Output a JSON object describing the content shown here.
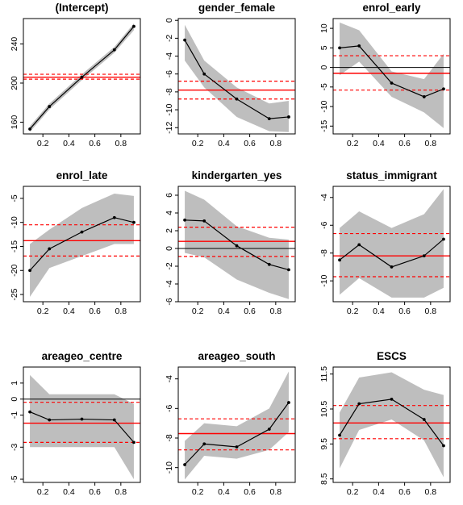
{
  "colors": {
    "band": "#bebebe",
    "mean_line": "#ff0000",
    "ci_line": "#ff0000",
    "zero_line": "#000000",
    "quantile_line": "#000000",
    "axis": "#000000"
  },
  "chart_data": [
    {
      "type": "line",
      "title": "(Intercept)",
      "x": [
        0.1,
        0.25,
        0.5,
        0.75,
        0.9
      ],
      "series": [
        {
          "values": [
            153,
            176,
            206,
            234,
            258
          ]
        }
      ],
      "band_lower": [
        150,
        173,
        203,
        231,
        254
      ],
      "band_upper": [
        156,
        179,
        209,
        237,
        261
      ],
      "mean": 206,
      "ci_lower": 204,
      "ci_upper": 209,
      "show_zero_line": false,
      "xlim": [
        0.05,
        0.95
      ],
      "ylim": [
        148,
        266
      ],
      "x_ticks": [
        0.2,
        0.4,
        0.6,
        0.8
      ],
      "x_tick_labels": [
        "0.2",
        "0.4",
        "0.6",
        "0.8"
      ],
      "y_ticks": [
        160,
        200,
        240
      ],
      "y_tick_labels": [
        "160",
        "200",
        "240"
      ]
    },
    {
      "type": "line",
      "title": "gender_female",
      "x": [
        0.1,
        0.25,
        0.5,
        0.75,
        0.9
      ],
      "series": [
        {
          "values": [
            -2.2,
            -6.0,
            -8.8,
            -11.0,
            -10.8
          ]
        }
      ],
      "band_lower": [
        -4.5,
        -7.5,
        -10.8,
        -12.4,
        -12.5
      ],
      "band_upper": [
        -0.5,
        -4.5,
        -7.5,
        -9.3,
        -9.0
      ],
      "mean": -7.8,
      "ci_lower": -8.8,
      "ci_upper": -6.8,
      "show_zero_line": false,
      "xlim": [
        0.05,
        0.95
      ],
      "ylim": [
        -12.7,
        0.2
      ],
      "x_ticks": [
        0.2,
        0.4,
        0.6,
        0.8
      ],
      "x_tick_labels": [
        "0.2",
        "0.4",
        "0.6",
        "0.8"
      ],
      "y_ticks": [
        -12,
        -10,
        -8,
        -6,
        -4,
        -2,
        0
      ],
      "y_tick_labels": [
        "-12",
        "-10",
        "-8",
        "-6",
        "-4",
        "-2",
        "0"
      ]
    },
    {
      "type": "line",
      "title": "enrol_early",
      "x": [
        0.1,
        0.25,
        0.5,
        0.75,
        0.9
      ],
      "series": [
        {
          "values": [
            5.0,
            5.5,
            -4.0,
            -7.5,
            -5.5
          ]
        }
      ],
      "band_lower": [
        -2.0,
        1.5,
        -7.5,
        -11.5,
        -15.5
      ],
      "band_upper": [
        11.5,
        9.5,
        -1.0,
        -3.0,
        3.5
      ],
      "mean": -1.5,
      "ci_lower": -5.8,
      "ci_upper": 3.0,
      "show_zero_line": true,
      "xlim": [
        0.05,
        0.95
      ],
      "ylim": [
        -17,
        12.5
      ],
      "x_ticks": [
        0.2,
        0.4,
        0.6,
        0.8
      ],
      "x_tick_labels": [
        "0.2",
        "0.4",
        "0.6",
        "0.8"
      ],
      "y_ticks": [
        -15,
        -10,
        -5,
        0,
        5,
        10
      ],
      "y_tick_labels": [
        "-15",
        "-10",
        "-5",
        "0",
        "5",
        "10"
      ]
    },
    {
      "type": "line",
      "title": "enrol_late",
      "x": [
        0.1,
        0.25,
        0.5,
        0.75,
        0.9
      ],
      "series": [
        {
          "values": [
            -20.0,
            -15.5,
            -12.0,
            -9.0,
            -10.0
          ]
        }
      ],
      "band_lower": [
        -25.5,
        -19.5,
        -17.0,
        -14.5,
        -14.5
      ],
      "band_upper": [
        -14.5,
        -11.5,
        -7.0,
        -4.0,
        -4.5
      ],
      "mean": -13.8,
      "ci_lower": -17.0,
      "ci_upper": -10.5,
      "show_zero_line": false,
      "xlim": [
        0.05,
        0.95
      ],
      "ylim": [
        -26.5,
        -2.5
      ],
      "x_ticks": [
        0.2,
        0.4,
        0.6,
        0.8
      ],
      "x_tick_labels": [
        "0.2",
        "0.4",
        "0.6",
        "0.8"
      ],
      "y_ticks": [
        -25,
        -20,
        -15,
        -10,
        -5
      ],
      "y_tick_labels": [
        "-25",
        "-20",
        "-15",
        "-10",
        "-5"
      ]
    },
    {
      "type": "line",
      "title": "kindergarten_yes",
      "x": [
        0.1,
        0.25,
        0.5,
        0.75,
        0.9
      ],
      "series": [
        {
          "values": [
            3.2,
            3.1,
            0.3,
            -1.8,
            -2.4
          ]
        }
      ],
      "band_lower": [
        -0.5,
        -1.0,
        -3.5,
        -5.0,
        -5.7
      ],
      "band_upper": [
        6.5,
        5.5,
        2.5,
        1.2,
        1.0
      ],
      "mean": 0.8,
      "ci_lower": -0.9,
      "ci_upper": 2.4,
      "show_zero_line": true,
      "xlim": [
        0.05,
        0.95
      ],
      "ylim": [
        -6,
        7
      ],
      "x_ticks": [
        0.2,
        0.4,
        0.6,
        0.8
      ],
      "x_tick_labels": [
        "0.2",
        "0.4",
        "0.6",
        "0.8"
      ],
      "y_ticks": [
        -6,
        -4,
        -2,
        0,
        2,
        4,
        6
      ],
      "y_tick_labels": [
        "-6",
        "-4",
        "-2",
        "0",
        "2",
        "4",
        "6"
      ]
    },
    {
      "type": "line",
      "title": "status_immigrant",
      "x": [
        0.1,
        0.25,
        0.5,
        0.75,
        0.9
      ],
      "series": [
        {
          "values": [
            -8.5,
            -7.4,
            -9.0,
            -8.2,
            -7.0
          ]
        }
      ],
      "band_lower": [
        -11.0,
        -9.8,
        -11.2,
        -11.2,
        -10.5
      ],
      "band_upper": [
        -6.2,
        -5.0,
        -6.2,
        -5.2,
        -3.4
      ],
      "mean": -8.2,
      "ci_lower": -9.7,
      "ci_upper": -6.6,
      "show_zero_line": false,
      "xlim": [
        0.05,
        0.95
      ],
      "ylim": [
        -11.5,
        -3.2
      ],
      "x_ticks": [
        0.2,
        0.4,
        0.6,
        0.8
      ],
      "x_tick_labels": [
        "0.2",
        "0.4",
        "0.6",
        "0.8"
      ],
      "y_ticks": [
        -10,
        -8,
        -6,
        -4
      ],
      "y_tick_labels": [
        "-10",
        "-8",
        "-6",
        "-4"
      ]
    },
    {
      "type": "line",
      "title": "areageo_centre",
      "x": [
        0.1,
        0.25,
        0.5,
        0.75,
        0.9
      ],
      "series": [
        {
          "values": [
            -0.8,
            -1.3,
            -1.25,
            -1.3,
            -2.7
          ]
        }
      ],
      "band_lower": [
        -3.0,
        -3.0,
        -3.0,
        -3.0,
        -5.0
      ],
      "band_upper": [
        1.5,
        0.3,
        0.3,
        0.3,
        -0.3
      ],
      "mean": -1.5,
      "ci_lower": -2.7,
      "ci_upper": -0.2,
      "show_zero_line": true,
      "xlim": [
        0.05,
        0.95
      ],
      "ylim": [
        -5.2,
        2.0
      ],
      "x_ticks": [
        0.2,
        0.4,
        0.6,
        0.8
      ],
      "x_tick_labels": [
        "0.2",
        "0.4",
        "0.6",
        "0.8"
      ],
      "y_ticks": [
        -5,
        -3,
        -1,
        0,
        1
      ],
      "y_tick_labels": [
        "-5",
        "-3",
        "-1",
        "0",
        "1"
      ]
    },
    {
      "type": "line",
      "title": "areageo_south",
      "x": [
        0.1,
        0.25,
        0.5,
        0.75,
        0.9
      ],
      "series": [
        {
          "values": [
            -9.8,
            -8.4,
            -8.6,
            -7.4,
            -5.6
          ]
        }
      ],
      "band_lower": [
        -10.8,
        -9.2,
        -9.4,
        -8.8,
        -7.6
      ],
      "band_upper": [
        -8.2,
        -7.0,
        -7.2,
        -6.0,
        -3.5
      ],
      "mean": -7.7,
      "ci_lower": -8.8,
      "ci_upper": -6.7,
      "show_zero_line": false,
      "xlim": [
        0.05,
        0.95
      ],
      "ylim": [
        -11,
        -3.2
      ],
      "x_ticks": [
        0.2,
        0.4,
        0.6,
        0.8
      ],
      "x_tick_labels": [
        "0.2",
        "0.4",
        "0.6",
        "0.8"
      ],
      "y_ticks": [
        -10,
        -8,
        -6,
        -4
      ],
      "y_tick_labels": [
        "-10",
        "-8",
        "-6",
        "-4"
      ]
    },
    {
      "type": "line",
      "title": "ESCS",
      "x": [
        0.1,
        0.25,
        0.5,
        0.75,
        0.9
      ],
      "series": [
        {
          "values": [
            9.75,
            10.65,
            10.78,
            10.2,
            9.45
          ]
        }
      ],
      "band_lower": [
        8.8,
        9.9,
        10.2,
        9.6,
        8.55
      ],
      "band_upper": [
        10.4,
        11.4,
        11.55,
        11.05,
        10.9
      ],
      "mean": 10.1,
      "ci_lower": 9.65,
      "ci_upper": 10.6,
      "show_zero_line": false,
      "xlim": [
        0.05,
        0.95
      ],
      "ylim": [
        8.4,
        11.7
      ],
      "x_ticks": [
        0.2,
        0.4,
        0.6,
        0.8
      ],
      "x_tick_labels": [
        "0.2",
        "0.4",
        "0.6",
        "0.8"
      ],
      "y_ticks": [
        8.5,
        9.5,
        10.5,
        11.5
      ],
      "y_tick_labels": [
        "8.5",
        "9.5",
        "10.5",
        "11.5"
      ]
    }
  ]
}
